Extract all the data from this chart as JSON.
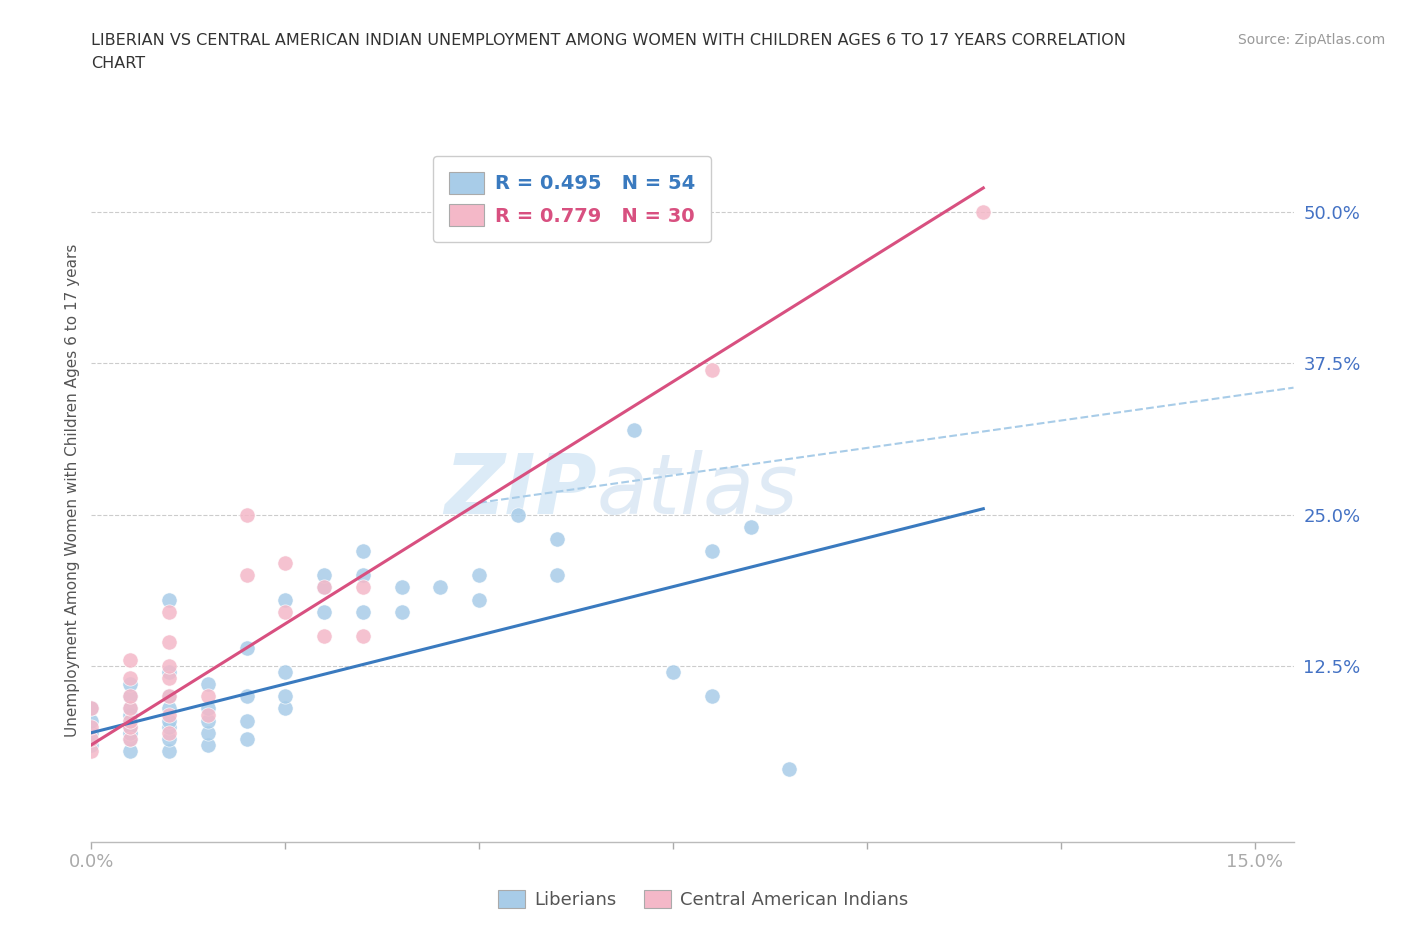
{
  "title_line1": "LIBERIAN VS CENTRAL AMERICAN INDIAN UNEMPLOYMENT AMONG WOMEN WITH CHILDREN AGES 6 TO 17 YEARS CORRELATION",
  "title_line2": "CHART",
  "source_text": "Source: ZipAtlas.com",
  "ylabel": "Unemployment Among Women with Children Ages 6 to 17 years",
  "xlim": [
    0.0,
    0.155
  ],
  "ylim": [
    -0.02,
    0.56
  ],
  "ytick_positions": [
    0.125,
    0.25,
    0.375,
    0.5
  ],
  "ytick_labels": [
    "12.5%",
    "25.0%",
    "37.5%",
    "50.0%"
  ],
  "legend_blue_label": "R = 0.495   N = 54",
  "legend_pink_label": "R = 0.779   N = 30",
  "blue_color": "#a8cce8",
  "pink_color": "#f4b8c8",
  "blue_line_color": "#3a7abf",
  "pink_line_color": "#d85080",
  "dashed_line_color": "#a8cce8",
  "grid_color": "#cccccc",
  "blue_scatter": [
    [
      0.0,
      0.06
    ],
    [
      0.0,
      0.07
    ],
    [
      0.0,
      0.08
    ],
    [
      0.0,
      0.09
    ],
    [
      0.005,
      0.055
    ],
    [
      0.005,
      0.065
    ],
    [
      0.005,
      0.07
    ],
    [
      0.005,
      0.075
    ],
    [
      0.005,
      0.08
    ],
    [
      0.005,
      0.085
    ],
    [
      0.005,
      0.09
    ],
    [
      0.005,
      0.1
    ],
    [
      0.005,
      0.11
    ],
    [
      0.01,
      0.055
    ],
    [
      0.01,
      0.065
    ],
    [
      0.01,
      0.075
    ],
    [
      0.01,
      0.08
    ],
    [
      0.01,
      0.09
    ],
    [
      0.01,
      0.1
    ],
    [
      0.01,
      0.12
    ],
    [
      0.01,
      0.18
    ],
    [
      0.015,
      0.06
    ],
    [
      0.015,
      0.07
    ],
    [
      0.015,
      0.08
    ],
    [
      0.015,
      0.09
    ],
    [
      0.015,
      0.11
    ],
    [
      0.02,
      0.065
    ],
    [
      0.02,
      0.08
    ],
    [
      0.02,
      0.1
    ],
    [
      0.02,
      0.14
    ],
    [
      0.025,
      0.09
    ],
    [
      0.025,
      0.1
    ],
    [
      0.025,
      0.12
    ],
    [
      0.025,
      0.18
    ],
    [
      0.03,
      0.17
    ],
    [
      0.03,
      0.19
    ],
    [
      0.03,
      0.2
    ],
    [
      0.035,
      0.17
    ],
    [
      0.035,
      0.2
    ],
    [
      0.035,
      0.22
    ],
    [
      0.04,
      0.17
    ],
    [
      0.04,
      0.19
    ],
    [
      0.045,
      0.19
    ],
    [
      0.05,
      0.18
    ],
    [
      0.05,
      0.2
    ],
    [
      0.055,
      0.25
    ],
    [
      0.06,
      0.2
    ],
    [
      0.06,
      0.23
    ],
    [
      0.07,
      0.32
    ],
    [
      0.075,
      0.12
    ],
    [
      0.08,
      0.1
    ],
    [
      0.08,
      0.22
    ],
    [
      0.085,
      0.24
    ],
    [
      0.09,
      0.04
    ]
  ],
  "pink_scatter": [
    [
      0.0,
      0.055
    ],
    [
      0.0,
      0.065
    ],
    [
      0.0,
      0.075
    ],
    [
      0.0,
      0.09
    ],
    [
      0.005,
      0.065
    ],
    [
      0.005,
      0.075
    ],
    [
      0.005,
      0.08
    ],
    [
      0.005,
      0.09
    ],
    [
      0.005,
      0.1
    ],
    [
      0.005,
      0.115
    ],
    [
      0.005,
      0.13
    ],
    [
      0.01,
      0.07
    ],
    [
      0.01,
      0.085
    ],
    [
      0.01,
      0.1
    ],
    [
      0.01,
      0.115
    ],
    [
      0.01,
      0.125
    ],
    [
      0.01,
      0.145
    ],
    [
      0.01,
      0.17
    ],
    [
      0.015,
      0.085
    ],
    [
      0.015,
      0.1
    ],
    [
      0.02,
      0.2
    ],
    [
      0.02,
      0.25
    ],
    [
      0.025,
      0.17
    ],
    [
      0.025,
      0.21
    ],
    [
      0.03,
      0.15
    ],
    [
      0.03,
      0.19
    ],
    [
      0.035,
      0.15
    ],
    [
      0.035,
      0.19
    ],
    [
      0.08,
      0.37
    ],
    [
      0.115,
      0.5
    ]
  ],
  "blue_line_x": [
    0.0,
    0.115
  ],
  "blue_line_y": [
    0.07,
    0.255
  ],
  "pink_line_x": [
    0.0,
    0.115
  ],
  "pink_line_y": [
    0.06,
    0.52
  ],
  "dashed_line_x": [
    0.05,
    0.155
  ],
  "dashed_line_y": [
    0.26,
    0.355
  ],
  "watermark_zip": "ZIP",
  "watermark_atlas": "atlas",
  "figsize": [
    14.06,
    9.3
  ],
  "dpi": 100
}
